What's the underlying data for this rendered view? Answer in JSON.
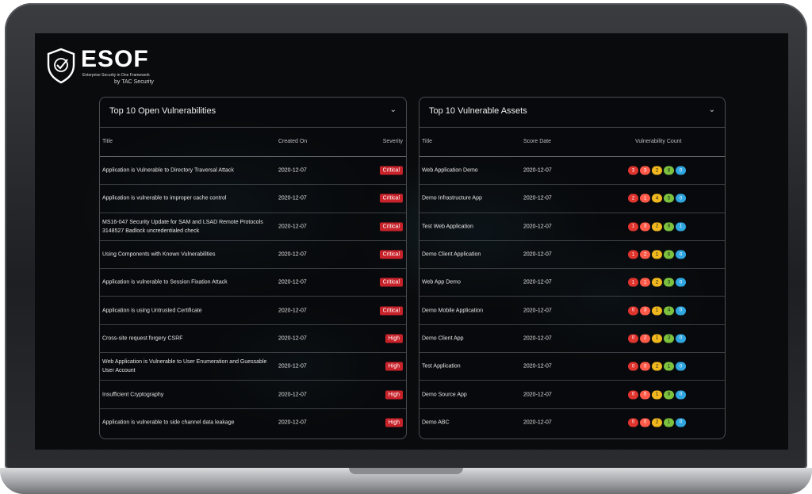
{
  "brand": {
    "name": "ESOF",
    "tagline": "Enterprise Security in One Framework",
    "by": "by TAC Security"
  },
  "vulns_panel": {
    "title": "Top 10 Open Vulnerabilities",
    "headers": {
      "title": "Title",
      "created": "Created On",
      "severity": "Severity"
    },
    "rows": [
      {
        "title": "Application is Vulnerable to Directory Traversal Attack",
        "date": "2020-12-07",
        "severity": "Critical"
      },
      {
        "title": "Application is vulnerable to improper cache control",
        "date": "2020-12-07",
        "severity": "Critical"
      },
      {
        "title": "MS16-047 Security Update for SAM and LSAD Remote Protocols 3148527 Badlock uncredentialed check",
        "date": "2020-12-07",
        "severity": "Critical"
      },
      {
        "title": "Using Components with Known Vulnerabilities",
        "date": "2020-12-07",
        "severity": "Critical"
      },
      {
        "title": "Application is vulnerable to Session Fixation Attack",
        "date": "2020-12-07",
        "severity": "Critical"
      },
      {
        "title": "Application is using Untrusted Certificate",
        "date": "2020-12-07",
        "severity": "Critical"
      },
      {
        "title": "Cross-site request forgery CSRF",
        "date": "2020-12-07",
        "severity": "High"
      },
      {
        "title": "Web Application is Vulnerable to User Enumeration and Guessable User Account",
        "date": "2020-12-07",
        "severity": "High"
      },
      {
        "title": "Insufficient Cryptography",
        "date": "2020-12-07",
        "severity": "High"
      },
      {
        "title": "Application is vulnerable to side channel data leakage",
        "date": "2020-12-07",
        "severity": "High"
      }
    ]
  },
  "assets_panel": {
    "title": "Top 10 Vulnerable Assets",
    "headers": {
      "title": "Title",
      "score_date": "Score Date",
      "count": "Vulnerability Count"
    },
    "rows": [
      {
        "title": "Web Application Demo",
        "date": "2020-12-07",
        "counts": [
          "3",
          "3",
          "2",
          "8",
          "0"
        ]
      },
      {
        "title": "Demo Infrastructure App",
        "date": "2020-12-07",
        "counts": [
          "2",
          "1",
          "4",
          "5",
          "0"
        ]
      },
      {
        "title": "Test Web Application",
        "date": "2020-12-07",
        "counts": [
          "1",
          "3",
          "2",
          "8",
          "1"
        ]
      },
      {
        "title": "Demo Client Application",
        "date": "2020-12-07",
        "counts": [
          "1",
          "2",
          "1",
          "6",
          "0"
        ]
      },
      {
        "title": "Web App Demo",
        "date": "2020-12-07",
        "counts": [
          "1",
          "1",
          "2",
          "3",
          "0"
        ]
      },
      {
        "title": "Demo Mobile Application",
        "date": "2020-12-07",
        "counts": [
          "0",
          "3",
          "1",
          "4",
          "0"
        ]
      },
      {
        "title": "Demo Client App",
        "date": "2020-12-07",
        "counts": [
          "0",
          "2",
          "1",
          "3",
          "0"
        ]
      },
      {
        "title": "Test Application",
        "date": "2020-12-07",
        "counts": [
          "0",
          "0",
          "2",
          "1",
          "0"
        ]
      },
      {
        "title": "Demo Source App",
        "date": "2020-12-07",
        "counts": [
          "0",
          "0",
          "1",
          "8",
          "0"
        ]
      },
      {
        "title": "Demo ABC",
        "date": "2020-12-07",
        "counts": [
          "0",
          "0",
          "2",
          "1",
          "0"
        ]
      }
    ]
  },
  "colors": {
    "critical": "#c8222a",
    "high": "#c8222a",
    "count_critical": "#e0342f",
    "count_high": "#ff5a4a",
    "count_medium": "#f0b81e",
    "count_low": "#7cc23e",
    "count_info": "#2fa6e0"
  },
  "icons": {
    "logo": "shield-check-icon",
    "expand": "chevron-down-icon"
  }
}
